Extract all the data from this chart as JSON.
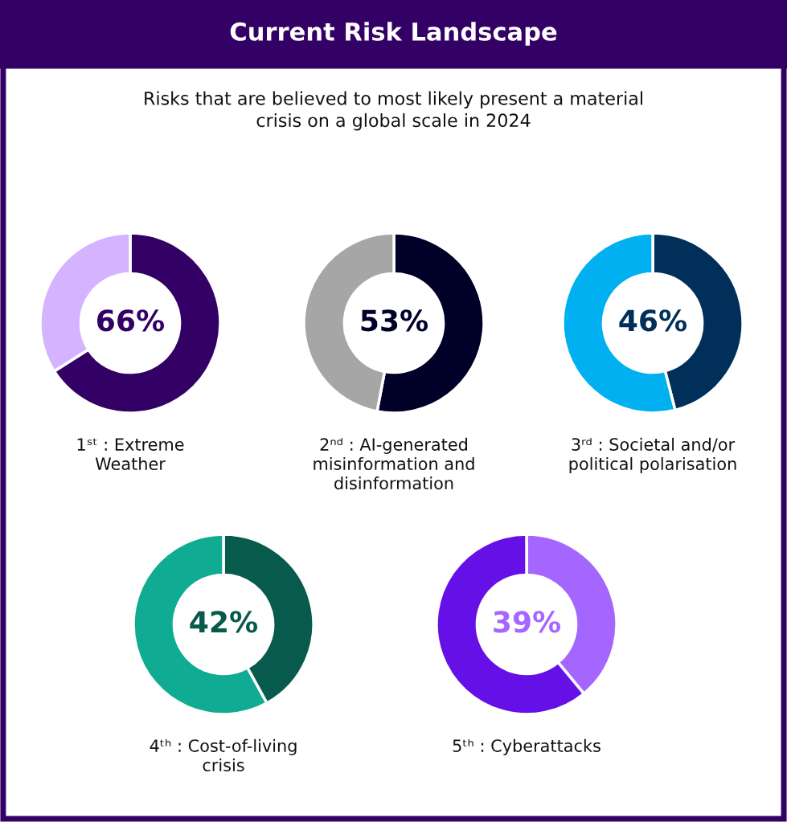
{
  "chart_data": [
    {
      "type": "other",
      "title": "Current Risk Landscape",
      "subtitle": "Risks that are believed to most likely present a material\ncrisis on a global scale in 2024"
    },
    {
      "type": "donut",
      "xlabel": "1ˢᵗ : Extreme\nWeather",
      "categories": [
        null,
        null
      ],
      "values": [
        66,
        34
      ],
      "colors": [
        "#330066",
        "#d4b3ff"
      ],
      "value_labels": [
        "66%",
        null
      ]
    },
    {
      "type": "donut",
      "xlabel": "2ⁿᵈ : AI-generated\nmisinformation and\ndisinformation",
      "categories": [
        null,
        null
      ],
      "values": [
        53,
        47
      ],
      "colors": [
        "#000029",
        "#a6a6a6"
      ],
      "value_labels": [
        "53%",
        null
      ]
    },
    {
      "type": "donut",
      "xlabel": "3ʳᵈ : Societal and/or\npolitical polarisation",
      "categories": [
        null,
        null
      ],
      "values": [
        46,
        54
      ],
      "colors": [
        "#00305a",
        "#00b0f0"
      ],
      "value_labels": [
        "46%",
        null
      ]
    },
    {
      "type": "donut",
      "xlabel": "4ᵗʰ : Cost-of-living\ncrisis",
      "categories": [
        null,
        null
      ],
      "values": [
        42,
        58
      ],
      "colors": [
        "#085a4c",
        "#10ab93"
      ],
      "value_labels": [
        "42%",
        null
      ]
    },
    {
      "type": "donut",
      "xlabel": "5ᵗʰ : Cyberattacks",
      "categories": [
        null,
        null
      ],
      "values": [
        39,
        61
      ],
      "colors": [
        "#a566ff",
        "#6610e8"
      ],
      "value_labels": [
        "39%",
        null
      ]
    }
  ]
}
